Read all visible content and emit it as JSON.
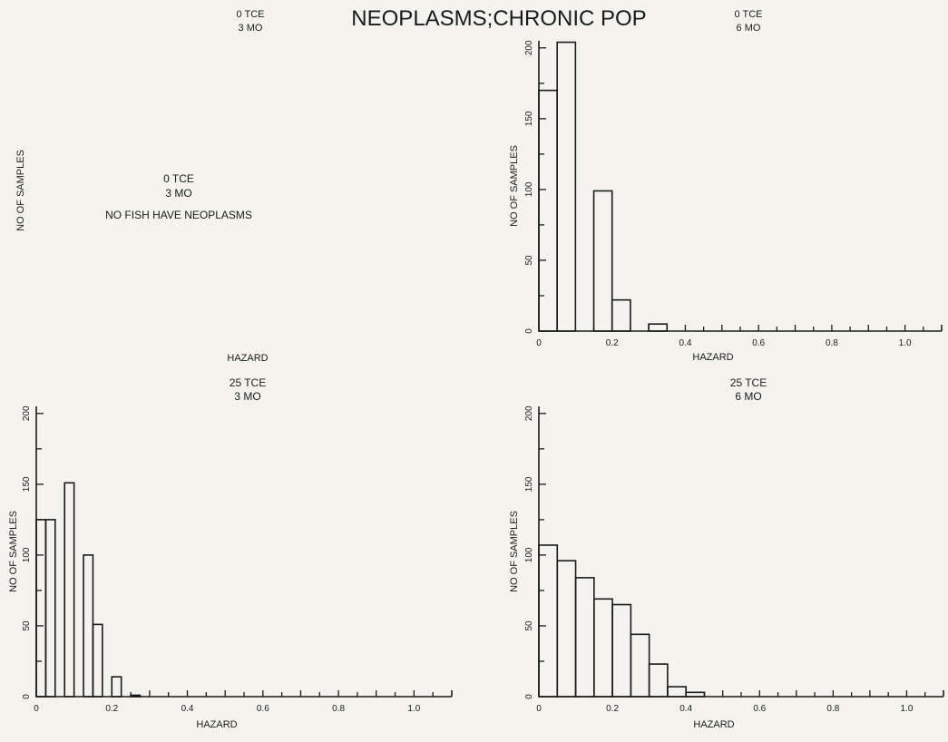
{
  "title": "NEOPLASMS;CHRONIC POP",
  "header_left": [
    "0 TCE",
    "3 MO"
  ],
  "header_right": [
    "0 TCE",
    "6 MO"
  ],
  "stray_label": "HAZARD",
  "empty_panel": {
    "ylabel": "NO OF SAMPLES",
    "message": [
      "0 TCE",
      "3 MO",
      "NO FISH HAVE NEOPLASMS"
    ]
  },
  "chart_data": [
    {
      "type": "bar",
      "heading": [
        "0 TCE",
        "6 MO"
      ],
      "xlabel": "HAZARD",
      "ylabel": "NO OF SAMPLES",
      "xlim": [
        0,
        1.1
      ],
      "ylim": [
        0,
        205
      ],
      "xticks": [
        "0",
        "0.2",
        "0.4",
        "0.6",
        "0.8",
        "1.0"
      ],
      "yticks": [
        "0",
        "50",
        "100",
        "150",
        "200"
      ],
      "bins": [
        [
          0,
          0.05
        ],
        [
          0.05,
          0.1
        ],
        [
          0.15,
          0.2
        ],
        [
          0.2,
          0.25
        ],
        [
          0.3,
          0.35
        ]
      ],
      "values": [
        170,
        204,
        99,
        22,
        5
      ]
    },
    {
      "type": "bar",
      "heading": [
        "25 TCE",
        "3 MO"
      ],
      "xlabel": "HAZARD",
      "ylabel": "NO OF SAMPLES",
      "xlim": [
        0,
        1.1
      ],
      "ylim": [
        0,
        205
      ],
      "xticks": [
        "0",
        "0.2",
        "0.4",
        "0.6",
        "0.8",
        "1.0"
      ],
      "yticks": [
        "0",
        "50",
        "100",
        "150",
        "200"
      ],
      "bins": [
        [
          0,
          0.025
        ],
        [
          0.025,
          0.05
        ],
        [
          0.075,
          0.1
        ],
        [
          0.125,
          0.15
        ],
        [
          0.15,
          0.175
        ],
        [
          0.2,
          0.225
        ],
        [
          0.25,
          0.275
        ]
      ],
      "values": [
        125,
        125,
        151,
        100,
        51,
        14,
        1
      ]
    },
    {
      "type": "bar",
      "heading": [
        "25 TCE",
        "6 MO"
      ],
      "xlabel": "HAZARD",
      "ylabel": "NO OF SAMPLES",
      "xlim": [
        0,
        1.1
      ],
      "ylim": [
        0,
        205
      ],
      "xticks": [
        "0",
        "0.2",
        "0.4",
        "0.6",
        "0.8",
        "1.0"
      ],
      "yticks": [
        "0",
        "50",
        "100",
        "150",
        "200"
      ],
      "bins": [
        [
          0,
          0.05
        ],
        [
          0.05,
          0.1
        ],
        [
          0.1,
          0.15
        ],
        [
          0.15,
          0.2
        ],
        [
          0.2,
          0.25
        ],
        [
          0.25,
          0.3
        ],
        [
          0.3,
          0.35
        ],
        [
          0.35,
          0.4
        ],
        [
          0.4,
          0.45
        ],
        [
          0.45,
          0.5
        ]
      ],
      "values": [
        107,
        96,
        84,
        69,
        65,
        44,
        23,
        7,
        3,
        0
      ]
    }
  ]
}
